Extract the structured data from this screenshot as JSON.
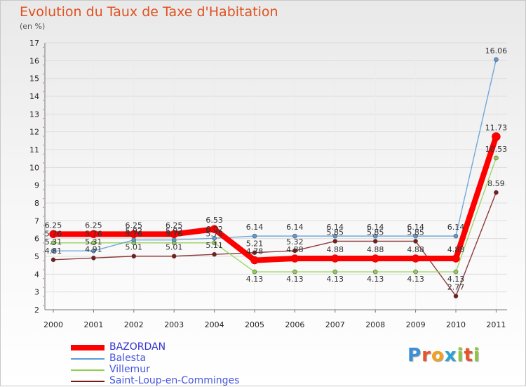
{
  "header": {
    "title": "Evolution du Taux de Taxe d'Habitation",
    "subtitle": "(en %)"
  },
  "chart_data": {
    "type": "line",
    "title": "Evolution du Taux de Taxe d'Habitation",
    "ylabel": "(en %)",
    "xlabel": "",
    "x": [
      "2000",
      "2001",
      "2002",
      "2003",
      "2004",
      "2005",
      "2006",
      "2007",
      "2008",
      "2009",
      "2010",
      "2011"
    ],
    "ylim": [
      2,
      17
    ],
    "yticks": [
      2,
      3,
      4,
      5,
      6,
      7,
      8,
      9,
      10,
      11,
      12,
      13,
      14,
      15,
      16,
      17
    ],
    "grid": "horizontal",
    "series": [
      {
        "name": "BAZORDAN",
        "color": "#ff0000",
        "values": [
          6.25,
          6.25,
          6.25,
          6.25,
          6.53,
          4.78,
          4.88,
          4.88,
          4.88,
          4.88,
          4.88,
          11.73
        ]
      },
      {
        "name": "Balesta",
        "color": "#5b9bd5",
        "values": [
          5.31,
          5.31,
          5.92,
          5.92,
          6.02,
          6.14,
          6.14,
          6.14,
          6.14,
          6.14,
          6.14,
          16.06
        ]
      },
      {
        "name": "Villemur",
        "color": "#90d050",
        "values": [
          5.76,
          5.76,
          5.76,
          5.76,
          5.76,
          4.13,
          4.13,
          4.13,
          4.13,
          4.13,
          4.13,
          10.53
        ]
      },
      {
        "name": "Saint-Loup-en-Comminges",
        "color": "#7a1a1a",
        "values": [
          4.81,
          4.91,
          5.01,
          5.01,
          5.11,
          5.21,
          5.32,
          5.85,
          5.85,
          5.85,
          2.77,
          8.59
        ]
      }
    ],
    "data_labels": [
      [
        "6.25",
        "6.25",
        "6.25",
        "6.25",
        "6.53",
        "4.78",
        "4.88",
        "4.88",
        "4.88",
        "4.88",
        "4.88",
        "11.73"
      ],
      [
        "5.31",
        "5.31",
        "5.92",
        "5.92",
        "6.02",
        "6.14",
        "6.14",
        "6.14",
        "6.14",
        "6.14",
        "6.14",
        "16.06"
      ],
      [
        "5.76",
        "5.76",
        "5.76",
        "5.76",
        "5.76",
        "4.13",
        "4.13",
        "4.13",
        "4.13",
        "4.13",
        "4.13",
        "10.53"
      ],
      [
        "4.81",
        "4.91",
        "5.01",
        "5.01",
        "5.11",
        "5.21",
        "5.32",
        "5.85",
        "5.85",
        "5.85",
        "2.77",
        "8.59"
      ]
    ],
    "legend_position": "bottom-left"
  },
  "legend": {
    "items": [
      {
        "label": "BAZORDAN",
        "color": "#ff0000"
      },
      {
        "label": "Balesta",
        "color": "#5b9bd5"
      },
      {
        "label": "Villemur",
        "color": "#90d050"
      },
      {
        "label": "Saint-Loup-en-Comminges",
        "color": "#7a1a1a"
      }
    ]
  },
  "logo": {
    "text": "Proxiti",
    "letters": [
      {
        "ch": "P",
        "color": "#3a8fd6"
      },
      {
        "ch": "r",
        "color": "#e8532a"
      },
      {
        "ch": "o",
        "color": "#f2a11e"
      },
      {
        "ch": "x",
        "color": "#2aa2d6"
      },
      {
        "ch": "i",
        "color": "#8cc63f"
      },
      {
        "ch": "t",
        "color": "#e8532a"
      },
      {
        "ch": "i",
        "color": "#8cc63f"
      }
    ]
  }
}
